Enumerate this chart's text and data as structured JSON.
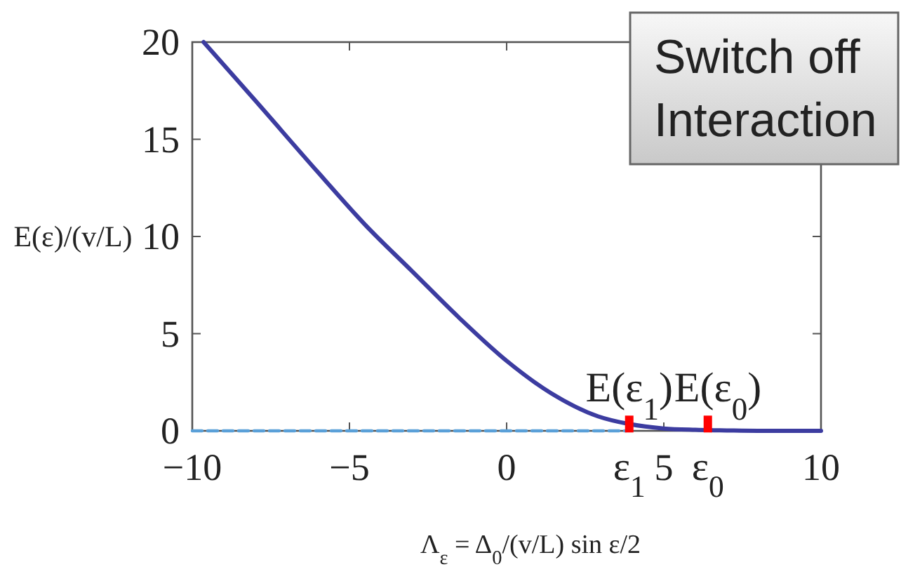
{
  "chart_data": [
    {
      "type": "line",
      "xlabel": "Λ$_{ε}$ = Δ$_{0}$/(v/L) sin ε/2",
      "ylabel": "E(ε)/(v/L)",
      "xlim": [
        -10,
        10
      ],
      "ylim": [
        0,
        20
      ],
      "xticks": [
        {
          "value": -10,
          "label": "−10"
        },
        {
          "value": -5,
          "label": "−5"
        },
        0,
        5,
        10
      ],
      "yticks": [
        0,
        5,
        10,
        15,
        20
      ],
      "series": [
        {
          "type": "line",
          "color": "#5aa0d8",
          "line_style": "dashed",
          "x": [
            -10,
            3.8
          ],
          "values": [
            0,
            0
          ]
        },
        {
          "type": "line",
          "color": "#3c3ca0",
          "x": [
            -9.64,
            -8,
            -6,
            -4.5,
            -3,
            -1.5,
            0,
            1.4,
            2.9,
            3.9,
            5,
            6,
            7,
            8,
            10
          ],
          "values": [
            20,
            17,
            13.3,
            10.6,
            8.2,
            5.8,
            3.6,
            1.95,
            0.75,
            0.35,
            0.12,
            0.05,
            0.02,
            0,
            0
          ]
        },
        {
          "type": "scatter",
          "color": "#ff0000",
          "marker": "square",
          "x": [
            3.9,
            6.4
          ],
          "values": [
            0.35,
            0.35
          ]
        }
      ],
      "annotations": [
        {
          "text": "E(ε$_{1}$)",
          "x": 3.9,
          "y": 0.35
        },
        {
          "text": "E(ε$_{0}$)",
          "x": 6.4,
          "y": 0.35
        },
        "ε$_{1}$",
        "ε$_{0}$"
      ]
    },
    {
      "type": "other",
      "annotations": [
        "Switch off Interaction"
      ]
    }
  ]
}
